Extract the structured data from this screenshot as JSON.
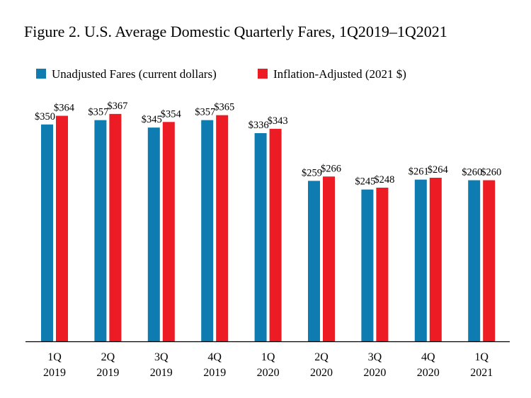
{
  "chart_data": {
    "type": "bar",
    "title": "Figure 2. U.S. Average Domestic Quarterly Fares, 1Q2019–1Q2021",
    "xlabel": "",
    "ylabel": "",
    "ylim": [
      0,
      400
    ],
    "grid": false,
    "legend_position": "top-left",
    "categories": [
      [
        "1Q",
        "2019"
      ],
      [
        "2Q",
        "2019"
      ],
      [
        "3Q",
        "2019"
      ],
      [
        "4Q",
        "2019"
      ],
      [
        "1Q",
        "2020"
      ],
      [
        "2Q",
        "2020"
      ],
      [
        "3Q",
        "2020"
      ],
      [
        "4Q",
        "2020"
      ],
      [
        "1Q",
        "2021"
      ]
    ],
    "series": [
      {
        "name": "Unadjusted Fares (current dollars)",
        "color": "#0f7cb1",
        "values": [
          350,
          357,
          345,
          357,
          336,
          259,
          245,
          261,
          260
        ],
        "labels": [
          "$350",
          "$357",
          "$345",
          "$357",
          "$336",
          "$259",
          "$245",
          "$261",
          "$260"
        ]
      },
      {
        "name": "Inflation-Adjusted (2021 $)",
        "color": "#ed1c24",
        "values": [
          364,
          367,
          354,
          365,
          343,
          266,
          248,
          264,
          260
        ],
        "labels": [
          "$364",
          "$367",
          "$354",
          "$365",
          "$343",
          "$266",
          "$248",
          "$264",
          "$260"
        ]
      }
    ]
  }
}
